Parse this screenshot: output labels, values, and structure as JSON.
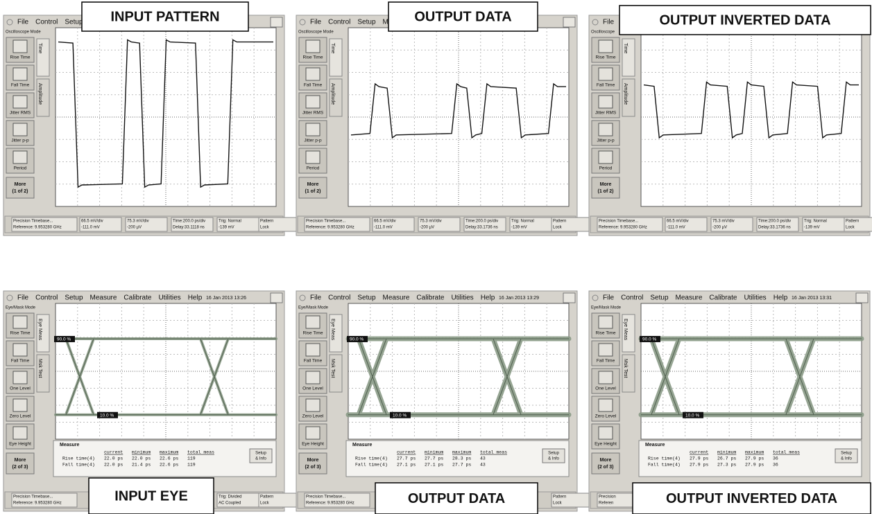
{
  "panels": [
    {
      "caption": "INPUT PATTERN",
      "mode": "Oscilloscope Mode",
      "menu": [
        "File",
        "Control",
        "Setup"
      ],
      "buttons": [
        "Rise Time",
        "Fall Time",
        "Jitter RMS",
        "Jitter p-p",
        "Period"
      ],
      "tabs": [
        "Time",
        "Amplitude"
      ],
      "more": [
        "More",
        "(1 of 2)"
      ],
      "status": [
        "Precision Timebase...",
        "Reference: 9.953280 GHz",
        "66.5 mV/div",
        "-111.0 mV",
        "75.3 mV/div",
        "-200 µV",
        "Time:200.0 ps/div",
        "Delay:33.1118 ns",
        "Trig: Normal",
        "-139 mV",
        "Pattern",
        "Lock"
      ]
    },
    {
      "caption": "OUTPUT DATA",
      "mode": "Oscilloscope Mode",
      "menu": [
        "File",
        "Control",
        "Setup",
        "Me"
      ],
      "buttons": [
        "Rise Time",
        "Fall Time",
        "Jitter RMS",
        "Jitter p-p",
        "Period"
      ],
      "tabs": [
        "Time",
        "Amplitude"
      ],
      "more": [
        "More",
        "(1 of 2)"
      ],
      "status": [
        "Precision Timebase...",
        "Reference: 9.953280 GHz",
        "66.5 mV/div",
        "-111.0 mV",
        "75.3 mV/div",
        "-200 µV",
        "Time:200.0 ps/div",
        "Delay:33.1736 ns",
        "Trig: Normal",
        "-139 mV",
        "Pattern",
        "Lock"
      ]
    },
    {
      "caption": "OUTPUT INVERTED DATA",
      "mode": "Oscilloscope",
      "menu": [
        "File"
      ],
      "buttons": [
        "Rise Time",
        "Fall Time",
        "Jitter RMS",
        "Jitter p-p",
        "Period"
      ],
      "tabs": [
        "Time",
        "Amplitude"
      ],
      "more": [
        "More",
        "(1 of 2)"
      ],
      "status": [
        "Precision Timebase...",
        "Reference: 9.953280 GHz",
        "66.5 mV/div",
        "-111.0 mV",
        "75.3 mV/div",
        "-200 µV",
        "Time:200.0 ps/div",
        "Delay:33.1736 ns",
        "Trig: Normal",
        "-139 mV",
        "Pattern",
        "Lock"
      ]
    },
    {
      "caption": "INPUT EYE",
      "mode": "Eye/Mask Mode",
      "menu": [
        "File",
        "Control",
        "Setup",
        "Measure",
        "Calibrate",
        "Utilities",
        "Help"
      ],
      "date": "16 Jan 2013  13:26",
      "buttons": [
        "Rise Time",
        "Fall Time",
        "One Level",
        "Zero Level",
        "Eye Height"
      ],
      "tabs": [
        "Eye Meas",
        "Msk Test"
      ],
      "more": [
        "More",
        "(2 of 3)"
      ],
      "eye_labels": [
        "90.0 %",
        "10.0 %"
      ],
      "measure": {
        "title": "Measure",
        "headers": [
          "current",
          "minimum",
          "maximum",
          "total meas"
        ],
        "rows": [
          [
            "Rise time(4)",
            "22.0 ps",
            "22.0 ps",
            "22.6 ps",
            "119"
          ],
          [
            "Fall time(4)",
            "22.0 ps",
            "21.4 ps",
            "22.6 ps",
            "119"
          ]
        ],
        "setup": [
          "Setup",
          "& Info"
        ]
      },
      "status": [
        "Precision Timebase...",
        "Reference: 9.953280 GHz",
        "",
        "",
        "",
        "",
        "",
        "",
        "Trig: Divided",
        "AC Coupled",
        "Pattern",
        "Lock"
      ]
    },
    {
      "caption": "OUTPUT DATA",
      "mode": "Eye/Mask Mode",
      "menu": [
        "File",
        "Control",
        "Setup",
        "Measure",
        "Calibrate",
        "Utilities",
        "Help"
      ],
      "date": "16 Jan 2013  13:29",
      "buttons": [
        "Rise Time",
        "Fall Time",
        "One Level",
        "Zero Level",
        "Eye Height"
      ],
      "tabs": [
        "Eye Meas",
        "Msk Test"
      ],
      "more": [
        "More",
        "(2 of 3)"
      ],
      "eye_labels": [
        "90.0 %",
        "10.0 %"
      ],
      "measure": {
        "title": "Measure",
        "headers": [
          "current",
          "minimum",
          "maximum",
          "total meas"
        ],
        "rows": [
          [
            "Rise time(4)",
            "27.7 ps",
            "27.7 ps",
            "28.3 ps",
            "43"
          ],
          [
            "Fall time(4)",
            "27.1 ps",
            "27.1 ps",
            "27.7 ps",
            "43"
          ]
        ],
        "setup": [
          "Setup",
          "& Info"
        ]
      },
      "status": [
        "Precision Timebase...",
        "Reference: 9.953280 GHz",
        "",
        "",
        "",
        "",
        "",
        "",
        "",
        "",
        "Pattern",
        "Lock"
      ]
    },
    {
      "caption": "OUTPUT INVERTED DATA",
      "mode": "Eye/Mask Mode",
      "menu": [
        "File",
        "Control",
        "Setup",
        "Measure",
        "Calibrate",
        "Utilities",
        "Help"
      ],
      "date": "16 Jan 2013  13:31",
      "buttons": [
        "Rise Time",
        "Fall Time",
        "One Level",
        "Zero Level",
        "Eye Height"
      ],
      "tabs": [
        "Eye Meas",
        "Msk Test"
      ],
      "more": [
        "More",
        "(2 of 3)"
      ],
      "eye_labels": [
        "90.0 %",
        "10.0 %"
      ],
      "measure": {
        "title": "Measure",
        "headers": [
          "current",
          "minimum",
          "maximum",
          "total meas"
        ],
        "rows": [
          [
            "Rise time(4)",
            "27.9 ps",
            "26.7 ps",
            "27.9 ps",
            "36"
          ],
          [
            "Fall time(4)",
            "27.9 ps",
            "27.3 ps",
            "27.9 ps",
            "36"
          ]
        ],
        "setup": [
          "Setup",
          "& Info"
        ]
      },
      "status": [
        "Precision",
        "Referen",
        "",
        "",
        "",
        "",
        "",
        "",
        "",
        "",
        "",
        ""
      ]
    }
  ]
}
